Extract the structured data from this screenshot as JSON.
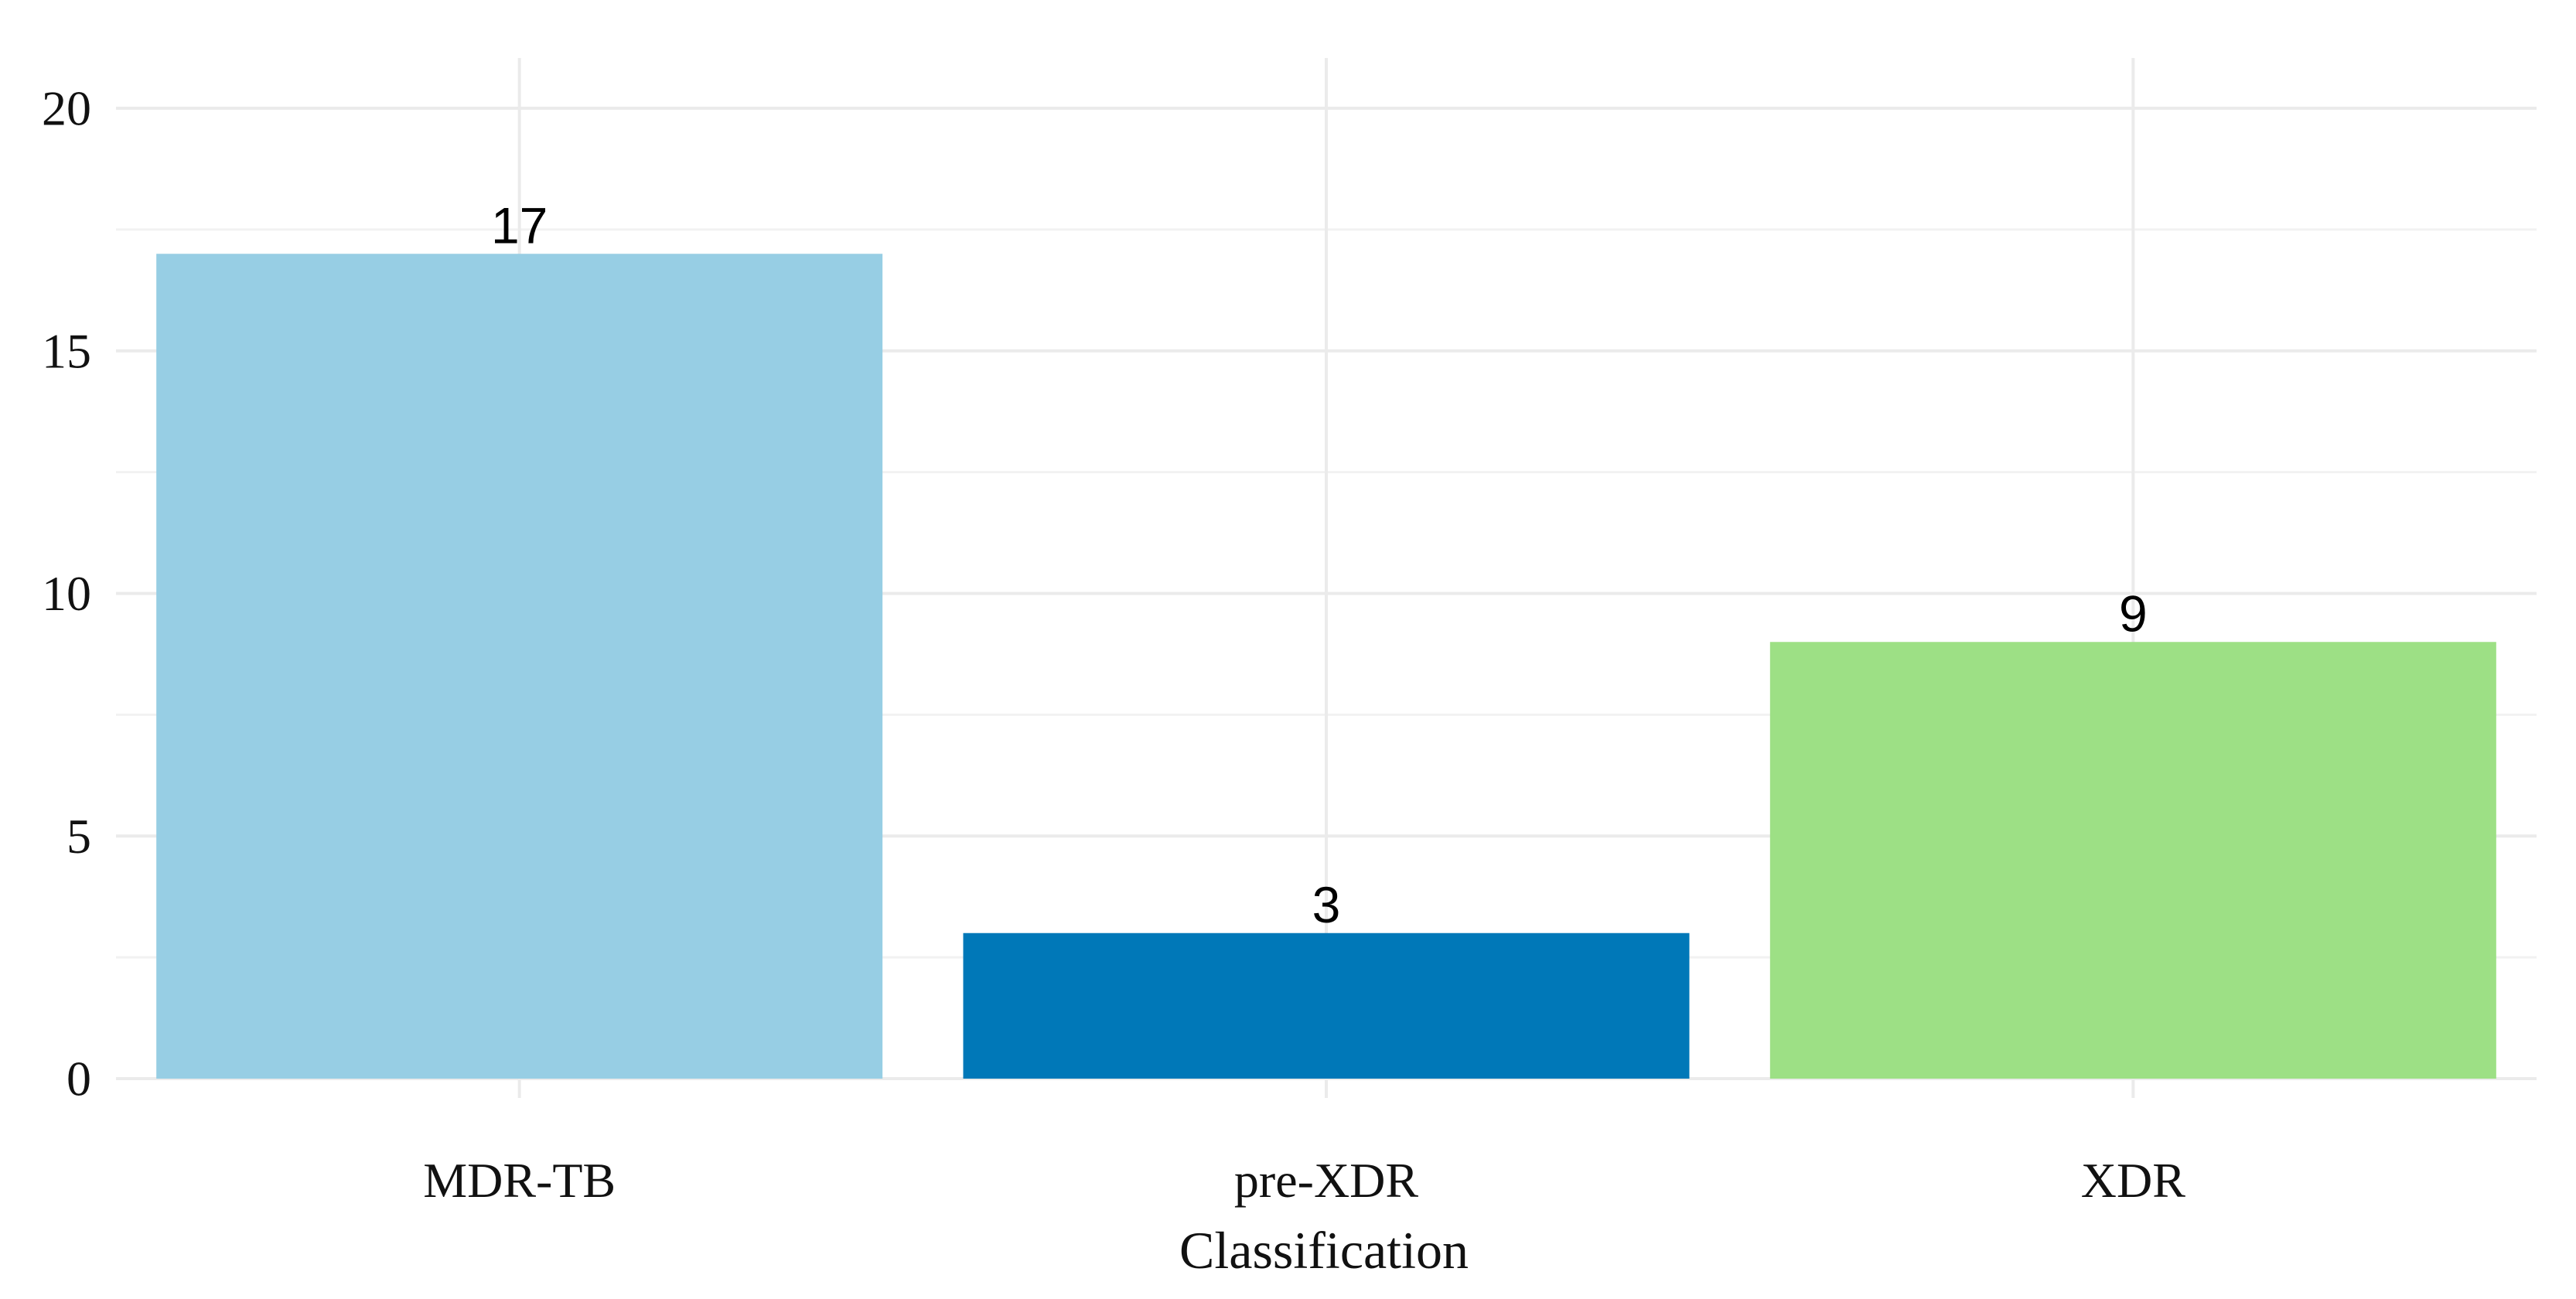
{
  "chart_data": {
    "type": "bar",
    "categories": [
      "MDR-TB",
      "pre-XDR",
      "XDR"
    ],
    "values": [
      17,
      3,
      9
    ],
    "data_labels": [
      "17",
      "3",
      "9"
    ],
    "colors": [
      "#97cee4",
      "#0078b8",
      "#9de085"
    ],
    "title": "",
    "xlabel": "Classification",
    "ylabel": "",
    "ylim": [
      0,
      21
    ],
    "yticks": [
      0,
      5,
      10,
      15,
      20
    ],
    "ytick_labels": [
      "0",
      "5",
      "10",
      "15",
      "20"
    ],
    "grid": true,
    "legend": "none"
  }
}
